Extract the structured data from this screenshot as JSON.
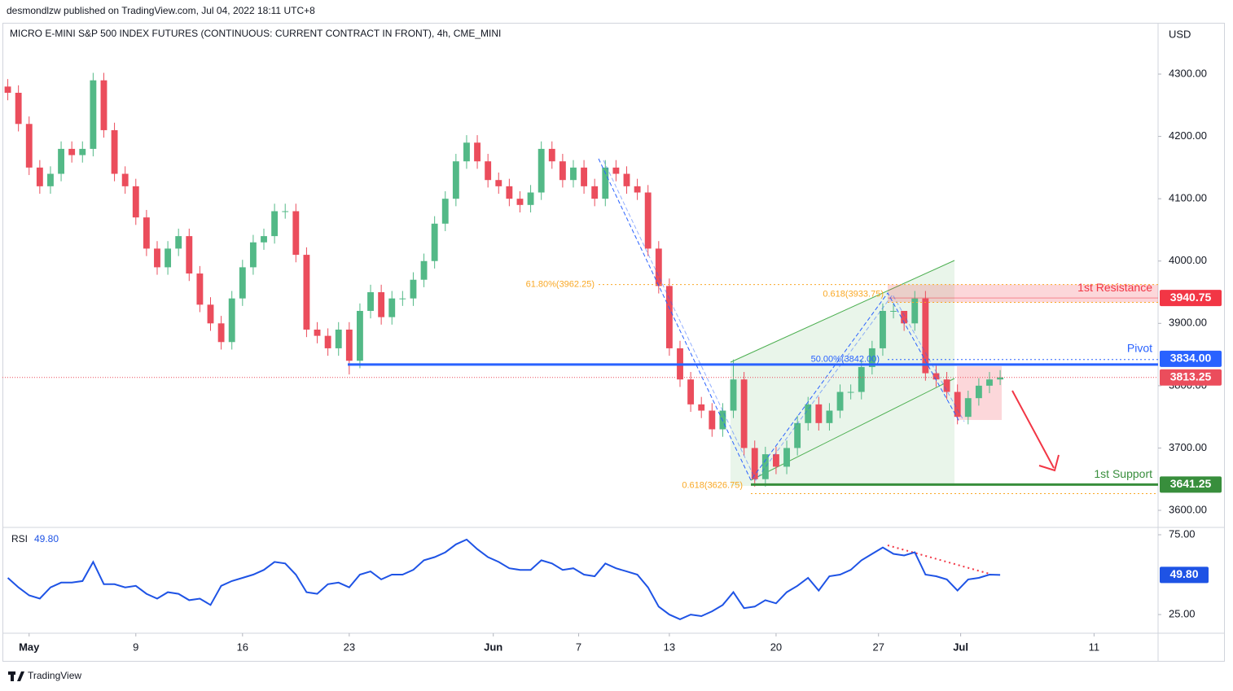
{
  "header": "desmondlzw published on TradingView.com, Jul 04, 2022 18:11 UTC+8",
  "footer": "TradingView",
  "chart_data": {
    "type": "candlestick",
    "title": "MICRO E-MINI S&P 500 INDEX FUTURES (CONTINUOUS: CURRENT CONTRACT IN FRONT), 4h, CME_MINI",
    "currency": "USD",
    "up_color": "#53b987",
    "down_color": "#eb4d5c",
    "open": [
      4280,
      4270,
      4220,
      4150,
      4120,
      4140,
      4180,
      4170,
      4180,
      4290,
      4210,
      4140,
      4120,
      4070,
      4020,
      3990,
      4020,
      4040,
      3980,
      3930,
      3900,
      3870,
      3940,
      3990,
      4030,
      4040,
      4080,
      4080,
      4010,
      3890,
      3880,
      3860,
      3890,
      3840,
      3920,
      3950,
      3910,
      3940,
      3940,
      3970,
      4000,
      4060,
      4100,
      4160,
      4190,
      4160,
      4130,
      4120,
      4100,
      4090,
      4110,
      4180,
      4160,
      4130,
      4150,
      4120,
      4100,
      4150,
      4140,
      4120,
      4110,
      4020,
      3960,
      3860,
      3810,
      3770,
      3760,
      3730,
      3760,
      3810,
      3700,
      3650,
      3690,
      3670,
      3700,
      3740,
      3770,
      3740,
      3760,
      3790,
      3790,
      3830,
      3860,
      3920,
      3920,
      3900,
      3940,
      3820,
      3810,
      3790,
      3750,
      3780,
      3800,
      3810
    ],
    "high": [
      4292,
      4282,
      4232,
      4162,
      4152,
      4192,
      4192,
      4192,
      4302,
      4302,
      4222,
      4152,
      4132,
      4082,
      4032,
      4032,
      4052,
      4052,
      3992,
      3942,
      3912,
      3952,
      4002,
      4042,
      4052,
      4092,
      4092,
      4092,
      4022,
      3902,
      3892,
      3902,
      3902,
      3932,
      3962,
      3962,
      3952,
      3952,
      3982,
      4012,
      4072,
      4112,
      4172,
      4202,
      4202,
      4172,
      4142,
      4132,
      4112,
      4122,
      4192,
      4192,
      4172,
      4162,
      4162,
      4132,
      4162,
      4162,
      4152,
      4132,
      4122,
      4032,
      3972,
      3872,
      3822,
      3782,
      3772,
      3772,
      3842,
      3822,
      3712,
      3702,
      3702,
      3712,
      3752,
      3782,
      3782,
      3772,
      3802,
      3802,
      3842,
      3872,
      3932,
      3932,
      3912,
      3952,
      3952,
      3832,
      3822,
      3802,
      3792,
      3812,
      3822,
      3825
    ],
    "low": [
      4258,
      4208,
      4138,
      4108,
      4108,
      4128,
      4158,
      4158,
      4168,
      4198,
      4128,
      4108,
      4058,
      4008,
      3978,
      3978,
      4008,
      3968,
      3918,
      3888,
      3858,
      3858,
      3928,
      3978,
      4018,
      4028,
      4068,
      3998,
      3878,
      3868,
      3848,
      3848,
      3818,
      3828,
      3908,
      3898,
      3898,
      3928,
      3928,
      3958,
      3988,
      4048,
      4088,
      4148,
      4148,
      4118,
      4108,
      4088,
      4078,
      4078,
      4098,
      4148,
      4118,
      4118,
      4108,
      4088,
      4088,
      4128,
      4108,
      4098,
      4008,
      3948,
      3848,
      3798,
      3758,
      3748,
      3718,
      3718,
      3748,
      3688,
      3638,
      3638,
      3658,
      3658,
      3688,
      3728,
      3728,
      3728,
      3748,
      3778,
      3778,
      3818,
      3848,
      3908,
      3888,
      3888,
      3808,
      3798,
      3778,
      3738,
      3738,
      3768,
      3788,
      3801
    ],
    "close": [
      4270,
      4220,
      4150,
      4120,
      4140,
      4180,
      4170,
      4180,
      4290,
      4210,
      4140,
      4120,
      4070,
      4020,
      3990,
      4020,
      4040,
      3980,
      3930,
      3900,
      3870,
      3940,
      3990,
      4030,
      4040,
      4080,
      4080,
      4010,
      3890,
      3880,
      3860,
      3890,
      3840,
      3920,
      3950,
      3910,
      3940,
      3940,
      3970,
      4000,
      4060,
      4100,
      4160,
      4190,
      4160,
      4130,
      4120,
      4100,
      4090,
      4110,
      4180,
      4160,
      4130,
      4150,
      4120,
      4100,
      4150,
      4140,
      4120,
      4110,
      4020,
      3960,
      3860,
      3810,
      3770,
      3760,
      3730,
      3760,
      3810,
      3700,
      3650,
      3690,
      3670,
      3700,
      3740,
      3770,
      3740,
      3760,
      3790,
      3790,
      3830,
      3860,
      3920,
      3920,
      3900,
      3940,
      3820,
      3810,
      3790,
      3750,
      3780,
      3800,
      3810,
      3813.25
    ],
    "xlim": [
      -0.5,
      107.8
    ],
    "xticks": [
      {
        "value": 2,
        "label": "May"
      },
      {
        "value": 12,
        "label": "9"
      },
      {
        "value": 22,
        "label": "16"
      },
      {
        "value": 32,
        "label": "23"
      },
      {
        "value": 45.5,
        "label": "Jun"
      },
      {
        "value": 53.5,
        "label": "7"
      },
      {
        "value": 62,
        "label": "13"
      },
      {
        "value": 72,
        "label": "20"
      },
      {
        "value": 81.6,
        "label": "27"
      },
      {
        "value": 89.3,
        "label": "Jul"
      },
      {
        "value": 101.8,
        "label": "11"
      }
    ],
    "ylim": [
      3572.6,
      4379.7
    ],
    "yticks": [
      {
        "value": 3600,
        "label": "3600.00"
      },
      {
        "value": 3700,
        "label": "3700.00"
      },
      {
        "value": 3800,
        "label": "3800.00"
      },
      {
        "value": 3900,
        "label": "3900.00"
      },
      {
        "value": 4000,
        "label": "4000.00"
      },
      {
        "value": 4100,
        "label": "4100.00"
      },
      {
        "value": 4200,
        "label": "4200.00"
      },
      {
        "value": 4300,
        "label": "4300.00"
      }
    ],
    "levels": [
      {
        "name": "1st Resistance",
        "color": "#f23645",
        "price": {
          "value": 3940.75,
          "label": "3940.75"
        }
      },
      {
        "name": "Pivot",
        "color": "#2962ff",
        "price": {
          "value": 3834,
          "label": "3834.00"
        }
      },
      {
        "name": "1st Support",
        "color": "#388e3c",
        "price": {
          "value": 3641.25,
          "label": "3641.25"
        }
      }
    ],
    "fibs": [
      {
        "label": "61.80%(3962.25)",
        "value": 3962.25,
        "color": "#f9a825"
      },
      {
        "label": "0.618(3933.75)",
        "value": 3933.75,
        "color": "#f9a825"
      },
      {
        "label": "50.00%(3842.00)",
        "value": 3842,
        "color": "#2962ff"
      },
      {
        "label": "0.618(3626.75)",
        "value": 3626.75,
        "color": "#f9a825"
      }
    ],
    "rsi": {
      "name": "RSI",
      "value_label": "49.80",
      "color": "#1e53e5",
      "values": [
        48,
        42,
        37,
        35,
        42,
        45,
        45,
        46,
        58,
        44,
        44,
        42,
        43,
        38,
        35,
        39,
        38,
        34,
        35,
        31,
        43,
        46,
        48,
        50,
        53,
        58,
        57,
        50,
        39,
        38,
        44,
        45,
        42,
        50,
        52,
        47,
        50,
        50,
        53,
        59,
        61,
        64,
        69,
        72,
        66,
        61,
        58,
        54,
        53,
        53,
        59,
        57,
        53,
        54,
        50,
        49,
        57,
        54,
        52,
        50,
        42,
        30,
        25,
        22,
        25,
        24,
        27,
        31,
        39,
        29,
        30,
        34,
        32,
        39,
        43,
        48,
        40,
        49,
        50,
        53,
        59,
        63,
        67,
        63,
        62,
        64,
        50,
        49,
        47,
        40,
        47,
        48,
        50,
        49.8
      ],
      "ylim": [
        13.3,
        79.6
      ],
      "yticks": [
        {
          "value": 25,
          "label": "25.00"
        },
        {
          "value": 75,
          "label": "75.00"
        }
      ]
    }
  }
}
